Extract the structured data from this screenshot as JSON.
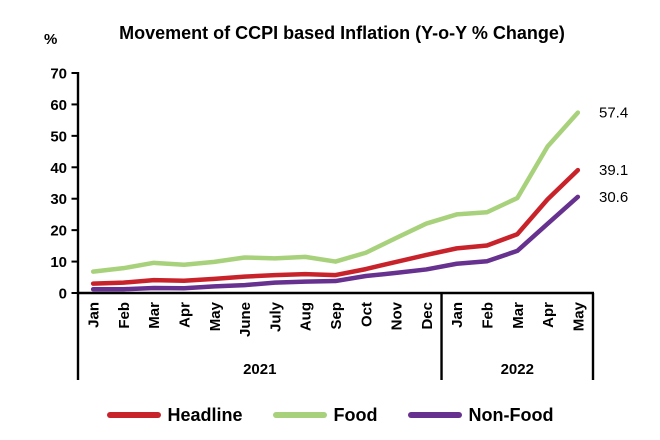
{
  "title": "Movement of CCPI based Inflation (Y-o-Y % Change)",
  "y_axis_unit_label": "%",
  "chart_data": {
    "type": "line",
    "title": "Movement of CCPI based Inflation (Y-o-Y % Change)",
    "ylabel": "%",
    "xlabel": "",
    "ylim": [
      0,
      70
    ],
    "ytick_interval": 10,
    "ytick_labels": [
      "0",
      "10",
      "20",
      "30",
      "40",
      "50",
      "60",
      "70"
    ],
    "grid": false,
    "legend_position": "bottom",
    "categories": [
      "Jan",
      "Feb",
      "Mar",
      "Apr",
      "May",
      "June",
      "July",
      "Aug",
      "Sep",
      "Oct",
      "Nov",
      "Dec",
      "Jan",
      "Feb",
      "Mar",
      "Apr",
      "May"
    ],
    "x_groups": [
      {
        "year": "2021",
        "month_count": 12
      },
      {
        "year": "2022",
        "month_count": 5
      }
    ],
    "series": [
      {
        "name": "Headline",
        "color": "#c8232b",
        "end_label": "39.1",
        "values": [
          3.0,
          3.3,
          4.1,
          3.9,
          4.5,
          5.2,
          5.7,
          6.0,
          5.7,
          7.6,
          9.9,
          12.1,
          14.2,
          15.1,
          18.7,
          29.8,
          39.1
        ]
      },
      {
        "name": "Food",
        "color": "#a8d17c",
        "end_label": "57.4",
        "values": [
          6.8,
          7.9,
          9.6,
          9.0,
          9.9,
          11.3,
          11.0,
          11.5,
          10.0,
          12.8,
          17.5,
          22.1,
          25.0,
          25.7,
          30.2,
          46.6,
          57.4
        ]
      },
      {
        "name": "Non-Food",
        "color": "#67318f",
        "end_label": "30.6",
        "values": [
          1.2,
          1.2,
          1.6,
          1.5,
          2.1,
          2.5,
          3.3,
          3.6,
          3.8,
          5.4,
          6.4,
          7.5,
          9.3,
          10.1,
          13.4,
          22.0,
          30.6
        ]
      }
    ]
  }
}
